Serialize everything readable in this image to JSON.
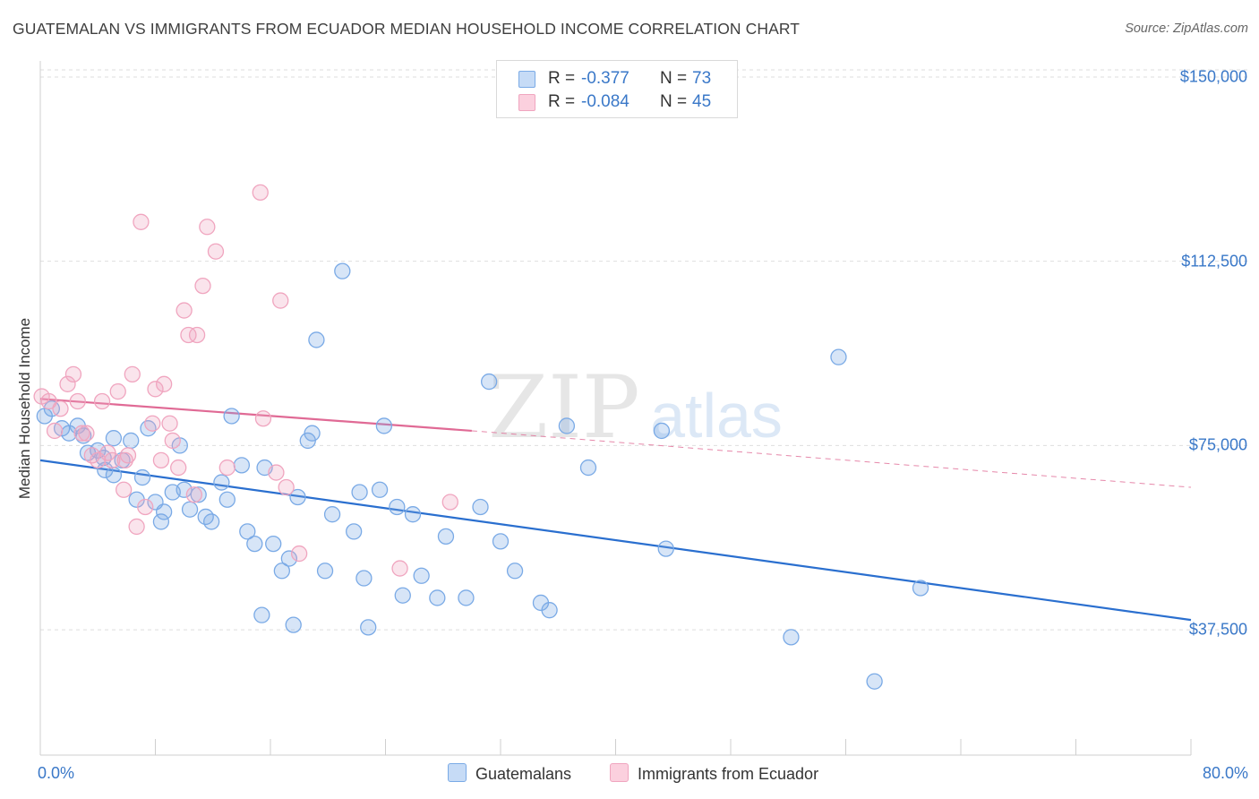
{
  "chart_data": {
    "type": "scatter",
    "title": "GUATEMALAN VS IMMIGRANTS FROM ECUADOR MEDIAN HOUSEHOLD INCOME CORRELATION CHART",
    "source": "Source: ZipAtlas.com",
    "ylabel": "Median Household Income",
    "xlim": [
      0,
      80
    ],
    "ylim": [
      12000,
      152000
    ],
    "x_tick_labels": [
      "0.0%",
      "80.0%"
    ],
    "y_ticks": [
      {
        "value": 150000,
        "label": "$150,000"
      },
      {
        "value": 112500,
        "label": "$112,500"
      },
      {
        "value": 75000,
        "label": "$75,000"
      },
      {
        "value": 37500,
        "label": "$37,500"
      }
    ],
    "watermark": {
      "zip": "ZIP",
      "atlas": "atlas"
    },
    "series": [
      {
        "name": "Guatemalans",
        "color": "#7aaae6",
        "line_color": "#2a6fcf",
        "r_label": "R =",
        "r_value": "-0.377",
        "n_label": "N =",
        "n_value": "73",
        "trend": {
          "x0": 0,
          "y0": 72000,
          "x1": 80,
          "y1": 39500
        },
        "points": [
          [
            0.3,
            81000
          ],
          [
            0.8,
            82500
          ],
          [
            1.5,
            78500
          ],
          [
            2.0,
            77500
          ],
          [
            2.6,
            79000
          ],
          [
            3.0,
            77000
          ],
          [
            3.3,
            73500
          ],
          [
            4.0,
            74000
          ],
          [
            4.4,
            72500
          ],
          [
            4.5,
            70000
          ],
          [
            5.1,
            76500
          ],
          [
            5.1,
            69000
          ],
          [
            5.7,
            72000
          ],
          [
            6.3,
            76000
          ],
          [
            6.7,
            64000
          ],
          [
            7.1,
            68500
          ],
          [
            7.5,
            78500
          ],
          [
            8.0,
            63500
          ],
          [
            8.4,
            59500
          ],
          [
            8.6,
            61500
          ],
          [
            9.2,
            65500
          ],
          [
            9.7,
            75000
          ],
          [
            10.0,
            66000
          ],
          [
            10.4,
            62000
          ],
          [
            11.0,
            65000
          ],
          [
            11.5,
            60500
          ],
          [
            11.9,
            59500
          ],
          [
            12.6,
            67500
          ],
          [
            13.0,
            64000
          ],
          [
            13.3,
            81000
          ],
          [
            14.0,
            71000
          ],
          [
            14.4,
            57500
          ],
          [
            14.9,
            55000
          ],
          [
            15.4,
            40500
          ],
          [
            15.6,
            70500
          ],
          [
            16.2,
            55000
          ],
          [
            16.8,
            49500
          ],
          [
            17.3,
            52000
          ],
          [
            17.6,
            38500
          ],
          [
            17.9,
            64500
          ],
          [
            18.6,
            76000
          ],
          [
            18.9,
            77500
          ],
          [
            19.2,
            96500
          ],
          [
            19.8,
            49500
          ],
          [
            20.3,
            61000
          ],
          [
            21.0,
            110500
          ],
          [
            21.8,
            57500
          ],
          [
            22.2,
            65500
          ],
          [
            22.5,
            48000
          ],
          [
            22.8,
            38000
          ],
          [
            23.6,
            66000
          ],
          [
            23.9,
            79000
          ],
          [
            24.8,
            62500
          ],
          [
            25.2,
            44500
          ],
          [
            25.9,
            61000
          ],
          [
            26.5,
            48500
          ],
          [
            27.6,
            44000
          ],
          [
            28.2,
            56500
          ],
          [
            29.6,
            44000
          ],
          [
            30.6,
            62500
          ],
          [
            31.2,
            88000
          ],
          [
            32.0,
            55500
          ],
          [
            33.0,
            49500
          ],
          [
            34.8,
            43000
          ],
          [
            35.4,
            41500
          ],
          [
            36.6,
            79000
          ],
          [
            38.1,
            70500
          ],
          [
            43.2,
            78000
          ],
          [
            43.5,
            54000
          ],
          [
            52.2,
            36000
          ],
          [
            55.5,
            93000
          ],
          [
            58.0,
            27000
          ],
          [
            61.2,
            46000
          ]
        ]
      },
      {
        "name": "Immigrants from Ecuador",
        "color": "#f0a5bf",
        "line_color": "#e06a95",
        "r_label": "R =",
        "r_value": "-0.084",
        "n_label": "N =",
        "n_value": "45",
        "trend": {
          "x0": 0,
          "y0": 84500,
          "x1": 30,
          "y1": 78000
        },
        "trend_ext": {
          "x0": 30,
          "y0": 78000,
          "x1": 80,
          "y1": 66500
        },
        "points": [
          [
            0.1,
            85000
          ],
          [
            0.6,
            84000
          ],
          [
            1.0,
            78000
          ],
          [
            1.4,
            82500
          ],
          [
            1.9,
            87500
          ],
          [
            2.3,
            89500
          ],
          [
            2.6,
            84000
          ],
          [
            3.2,
            77500
          ],
          [
            3.6,
            73000
          ],
          [
            4.0,
            72000
          ],
          [
            4.3,
            84000
          ],
          [
            4.7,
            73500
          ],
          [
            5.0,
            72000
          ],
          [
            5.4,
            86000
          ],
          [
            5.9,
            72000
          ],
          [
            6.1,
            73000
          ],
          [
            6.4,
            89500
          ],
          [
            6.7,
            58500
          ],
          [
            7.0,
            120500
          ],
          [
            7.3,
            62500
          ],
          [
            7.8,
            79500
          ],
          [
            8.0,
            86500
          ],
          [
            8.4,
            72000
          ],
          [
            8.6,
            87500
          ],
          [
            9.0,
            79500
          ],
          [
            9.2,
            76000
          ],
          [
            9.6,
            70500
          ],
          [
            10.0,
            102500
          ],
          [
            10.3,
            97500
          ],
          [
            10.7,
            65000
          ],
          [
            10.9,
            97500
          ],
          [
            11.3,
            107500
          ],
          [
            11.6,
            119500
          ],
          [
            12.2,
            114500
          ],
          [
            13.0,
            70500
          ],
          [
            15.3,
            126500
          ],
          [
            15.5,
            80500
          ],
          [
            16.4,
            69500
          ],
          [
            16.7,
            104500
          ],
          [
            17.1,
            66500
          ],
          [
            18.0,
            53000
          ],
          [
            25.0,
            50000
          ],
          [
            28.5,
            63500
          ],
          [
            2.9,
            77500
          ],
          [
            5.8,
            66000
          ]
        ]
      }
    ],
    "legend_position": "top-center"
  }
}
